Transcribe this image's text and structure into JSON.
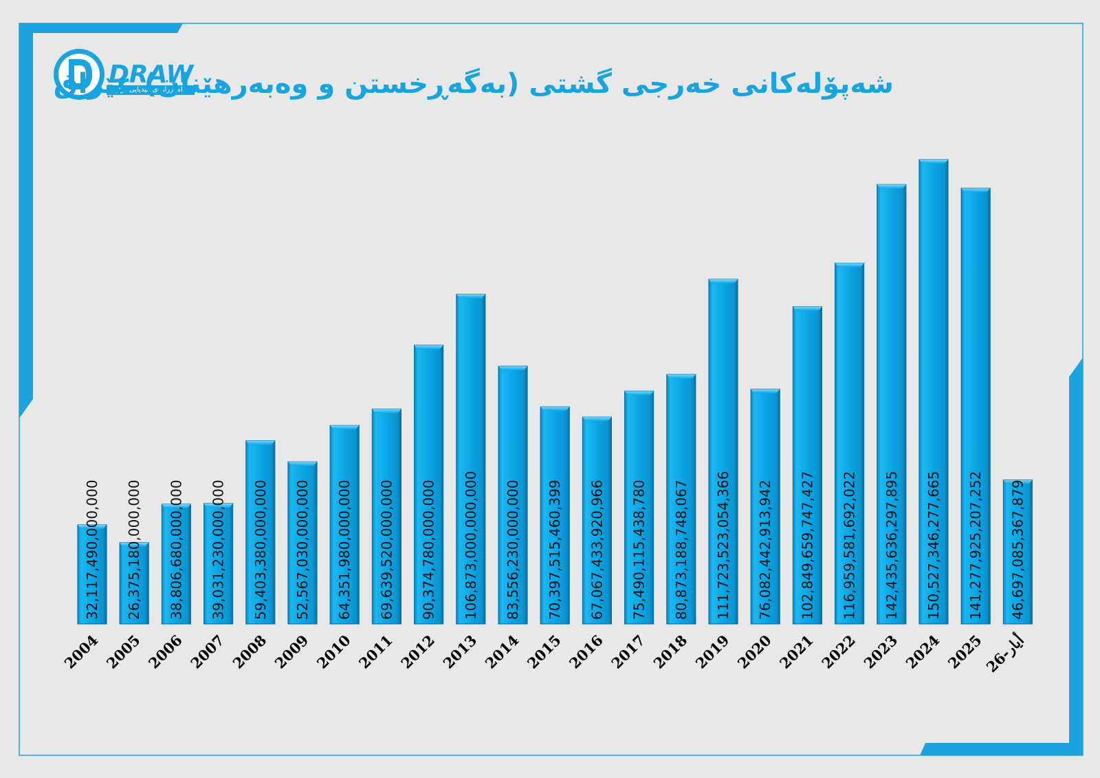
{
  "brand": {
    "logo_text": "DRAW",
    "tagline": "دامەزراوەی میدیایی دراو"
  },
  "colors": {
    "accent": "#1aa3de",
    "bar_fill": "#0aa6e6",
    "bar_edge": "#0a73a8",
    "label_text": "#111111",
    "background": "#e8e8e8"
  },
  "chart_data": {
    "type": "bar",
    "title": "شەپۆلەکانی خەرجی گشتی (بەگەڕخستن و وەبەرهێنان) عێراق",
    "xlabel": "",
    "ylabel": "",
    "grid": false,
    "legend": "none",
    "ylim": [
      0,
      155000000000000
    ],
    "categories": [
      "2004",
      "2005",
      "2006",
      "2007",
      "2008",
      "2009",
      "2010",
      "2011",
      "2012",
      "2013",
      "2014",
      "2015",
      "2016",
      "2017",
      "2018",
      "2019",
      "2020",
      "2021",
      "2022",
      "2023",
      "2024",
      "2025",
      "أيار-26"
    ],
    "values": [
      32117490000000,
      26375180000000,
      38806680000000,
      39031230000000,
      59403380000000,
      52567030000000,
      64351980000000,
      69639520000000,
      90374780000000,
      106873000000000,
      83556230000000,
      70397515460399,
      67067433920966,
      75490115438780,
      80873188748067,
      111723523054366,
      76082442913942,
      102849659747427,
      116959581692022,
      142435636297895,
      150527346277665,
      141277925207252,
      46697085367879
    ],
    "value_labels": [
      "32,117,490,000,000",
      "26,375,180,000,000",
      "38,806,680,000,000",
      "39,031,230,000,000",
      "59,403,380,000,000",
      "52,567,030,000,000",
      "64,351,980,000,000",
      "69,639,520,000,000",
      "90,374,780,000,000",
      "106,873,000,000,000",
      "83,556,230,000,000",
      "70,397,515,460,399",
      "67,067,433,920,966",
      "75,490,115,438,780",
      "80,873,188,748,067",
      "111,723,523,054,366",
      "76,082,442,913,942",
      "102,849,659,747,427",
      "116,959,581,692,022",
      "142,435,636,297,895",
      "150,527,346,277,665",
      "141,277,925,207,252",
      "46,697,085,367,879"
    ]
  }
}
